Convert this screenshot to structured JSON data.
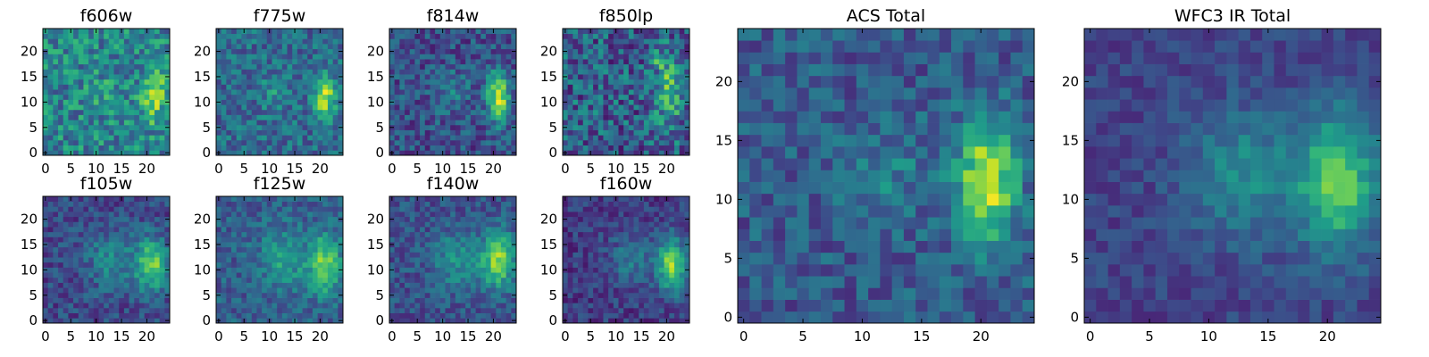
{
  "figure": {
    "colormap": "viridis",
    "colormap_stops": [
      "#440154",
      "#482878",
      "#3e4989",
      "#31688e",
      "#26828e",
      "#1f9e89",
      "#35b779",
      "#6ece58",
      "#b5de2b",
      "#fde725"
    ],
    "frame_color": "#000000"
  },
  "chart_data": [
    {
      "type": "heatmap",
      "title": "f606w",
      "grid_size": 25,
      "source": {
        "cx": 21.5,
        "cy": 11.5,
        "sx": 1.6,
        "sy": 3.8,
        "amp": 0.35,
        "secondary": {
          "cx": 12,
          "cy": 12,
          "sx": 2.5,
          "sy": 3,
          "amp": 0.08
        },
        "base": 0.45,
        "noise": 0.45,
        "seed": 11
      },
      "xlim": [
        -0.5,
        24.5
      ],
      "ylim": [
        -0.5,
        24.5
      ],
      "xticks": [
        0,
        5,
        10,
        15,
        20
      ],
      "yticks": [
        0,
        5,
        10,
        15,
        20
      ]
    },
    {
      "type": "heatmap",
      "title": "f775w",
      "grid_size": 25,
      "source": {
        "cx": 21,
        "cy": 11,
        "sx": 1.4,
        "sy": 3.2,
        "amp": 0.55,
        "secondary": {
          "cx": 11,
          "cy": 12,
          "sx": 2,
          "sy": 2.5,
          "amp": 0.15
        },
        "base": 0.35,
        "noise": 0.35,
        "seed": 23
      },
      "xlim": [
        -0.5,
        24.5
      ],
      "ylim": [
        -0.5,
        24.5
      ],
      "xticks": [
        0,
        5,
        10,
        15,
        20
      ],
      "yticks": [
        0,
        5,
        10,
        15,
        20
      ]
    },
    {
      "type": "heatmap",
      "title": "f814w",
      "grid_size": 25,
      "source": {
        "cx": 21,
        "cy": 11,
        "sx": 1.5,
        "sy": 3.5,
        "amp": 0.65,
        "secondary": {
          "cx": 12,
          "cy": 12,
          "sx": 2.5,
          "sy": 3,
          "amp": 0.15
        },
        "base": 0.25,
        "noise": 0.35,
        "seed": 37
      },
      "xlim": [
        -0.5,
        24.5
      ],
      "ylim": [
        -0.5,
        24.5
      ],
      "xticks": [
        0,
        5,
        10,
        15,
        20
      ],
      "yticks": [
        0,
        5,
        10,
        15,
        20
      ]
    },
    {
      "type": "heatmap",
      "title": "f850lp",
      "grid_size": 25,
      "source": {
        "cx": 20.5,
        "cy": 12.5,
        "sx": 1.8,
        "sy": 4.5,
        "amp": 0.45,
        "secondary": {
          "cx": 18.5,
          "cy": 18.5,
          "sx": 0.8,
          "sy": 0.8,
          "amp": 0.35
        },
        "base": 0.3,
        "noise": 0.5,
        "seed": 53
      },
      "xlim": [
        -0.5,
        24.5
      ],
      "ylim": [
        -0.5,
        24.5
      ],
      "xticks": [
        0,
        5,
        10,
        15,
        20
      ],
      "yticks": [
        0,
        5,
        10,
        15,
        20
      ]
    },
    {
      "type": "heatmap",
      "title": "f105w",
      "grid_size": 25,
      "source": {
        "cx": 21,
        "cy": 11,
        "sx": 2.2,
        "sy": 3.8,
        "amp": 0.55,
        "secondary": {
          "cx": 13,
          "cy": 12,
          "sx": 3.5,
          "sy": 4,
          "amp": 0.25
        },
        "base": 0.22,
        "noise": 0.28,
        "seed": 71
      },
      "xlim": [
        -0.5,
        24.5
      ],
      "ylim": [
        -0.5,
        24.5
      ],
      "xticks": [
        0,
        5,
        10,
        15,
        20
      ],
      "yticks": [
        0,
        5,
        10,
        15,
        20
      ]
    },
    {
      "type": "heatmap",
      "title": "f125w",
      "grid_size": 25,
      "source": {
        "cx": 21,
        "cy": 11,
        "sx": 2.2,
        "sy": 4,
        "amp": 0.5,
        "secondary": {
          "cx": 13,
          "cy": 12,
          "sx": 3.5,
          "sy": 4,
          "amp": 0.25
        },
        "base": 0.3,
        "noise": 0.28,
        "seed": 89
      },
      "xlim": [
        -0.5,
        24.5
      ],
      "ylim": [
        -0.5,
        24.5
      ],
      "xticks": [
        0,
        5,
        10,
        15,
        20
      ],
      "yticks": [
        0,
        5,
        10,
        15,
        20
      ]
    },
    {
      "type": "heatmap",
      "title": "f140w",
      "grid_size": 25,
      "source": {
        "cx": 21,
        "cy": 12,
        "sx": 2.2,
        "sy": 4,
        "amp": 0.55,
        "secondary": {
          "cx": 13,
          "cy": 12,
          "sx": 3.5,
          "sy": 4,
          "amp": 0.25
        },
        "base": 0.25,
        "noise": 0.26,
        "seed": 97
      },
      "xlim": [
        -0.5,
        24.5
      ],
      "ylim": [
        -0.5,
        24.5
      ],
      "xticks": [
        0,
        5,
        10,
        15,
        20
      ],
      "yticks": [
        0,
        5,
        10,
        15,
        20
      ]
    },
    {
      "type": "heatmap",
      "title": "f160w",
      "grid_size": 25,
      "source": {
        "cx": 21,
        "cy": 11,
        "sx": 2,
        "sy": 3.8,
        "amp": 0.62,
        "secondary": {
          "cx": 13,
          "cy": 12,
          "sx": 3,
          "sy": 3.5,
          "amp": 0.22
        },
        "base": 0.18,
        "noise": 0.25,
        "seed": 113
      },
      "xlim": [
        -0.5,
        24.5
      ],
      "ylim": [
        -0.5,
        24.5
      ],
      "xticks": [
        0,
        5,
        10,
        15,
        20
      ],
      "yticks": [
        0,
        5,
        10,
        15,
        20
      ]
    },
    {
      "type": "heatmap",
      "title": "ACS Total",
      "grid_size": 25,
      "source": {
        "cx": 20.5,
        "cy": 11.5,
        "sx": 1.8,
        "sy": 4,
        "amp": 0.62,
        "secondary": {
          "cx": 12,
          "cy": 12,
          "sx": 2.5,
          "sy": 3,
          "amp": 0.15
        },
        "base": 0.28,
        "noise": 0.3,
        "seed": 131
      },
      "xlim": [
        -0.5,
        24.5
      ],
      "ylim": [
        -0.5,
        24.5
      ],
      "xticks": [
        0,
        5,
        10,
        15,
        20
      ],
      "yticks": [
        0,
        5,
        10,
        15,
        20
      ]
    },
    {
      "type": "heatmap",
      "title": "WFC3 IR Total",
      "grid_size": 25,
      "source": {
        "cx": 21,
        "cy": 11.5,
        "sx": 2.3,
        "sy": 4.2,
        "amp": 0.55,
        "secondary": {
          "cx": 13,
          "cy": 12,
          "sx": 3.5,
          "sy": 4,
          "amp": 0.28
        },
        "base": 0.2,
        "noise": 0.18,
        "seed": 157
      },
      "xlim": [
        -0.5,
        24.5
      ],
      "ylim": [
        -0.5,
        24.5
      ],
      "xticks": [
        0,
        5,
        10,
        15,
        20
      ],
      "yticks": [
        0,
        5,
        10,
        15,
        20
      ]
    }
  ]
}
